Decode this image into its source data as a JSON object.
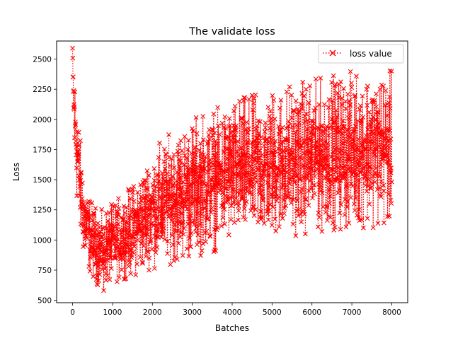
{
  "chart_data": {
    "type": "line",
    "title": "The validate loss",
    "xlabel": "Batches",
    "ylabel": "Loss",
    "xlim": [
      -400,
      8400
    ],
    "ylim": [
      480,
      2650
    ],
    "xticks": [
      0,
      1000,
      2000,
      3000,
      4000,
      5000,
      6000,
      7000,
      8000
    ],
    "xtick_labels": [
      "0",
      "1000",
      "2000",
      "3000",
      "4000",
      "5000",
      "6000",
      "7000",
      "8000"
    ],
    "yticks": [
      500,
      750,
      1000,
      1250,
      1500,
      1750,
      2000,
      2250,
      2500
    ],
    "ytick_labels": [
      "500",
      "750",
      "1000",
      "1250",
      "1500",
      "1750",
      "2000",
      "2250",
      "2500"
    ],
    "grid": false,
    "legend": {
      "position": "top-right"
    },
    "series": [
      {
        "name": "loss value",
        "color": "#ff0000",
        "line_style": "dotted",
        "marker": "x",
        "x_range": [
          0,
          8000
        ],
        "envelope": {
          "x": [
            0,
            50,
            100,
            200,
            300,
            500,
            700,
            800,
            1000,
            1500,
            2000,
            2500,
            3000,
            3500,
            4000,
            4500,
            5000,
            5500,
            6000,
            6500,
            7000,
            7500,
            8000
          ],
          "lower": [
            2150,
            1550,
            1300,
            1000,
            800,
            680,
            600,
            620,
            640,
            700,
            760,
            800,
            850,
            900,
            950,
            980,
            1000,
            1030,
            1060,
            1080,
            1100,
            1100,
            1120
          ],
          "upper": [
            2580,
            2420,
            2300,
            1800,
            1500,
            1300,
            1250,
            1260,
            1300,
            1450,
            1750,
            1900,
            2000,
            2080,
            2150,
            2200,
            2250,
            2300,
            2330,
            2360,
            2400,
            2420,
            2400
          ]
        },
        "peak": {
          "x": 0,
          "y": 2590
        },
        "minimum": {
          "x": 780,
          "y": 580
        }
      }
    ]
  }
}
